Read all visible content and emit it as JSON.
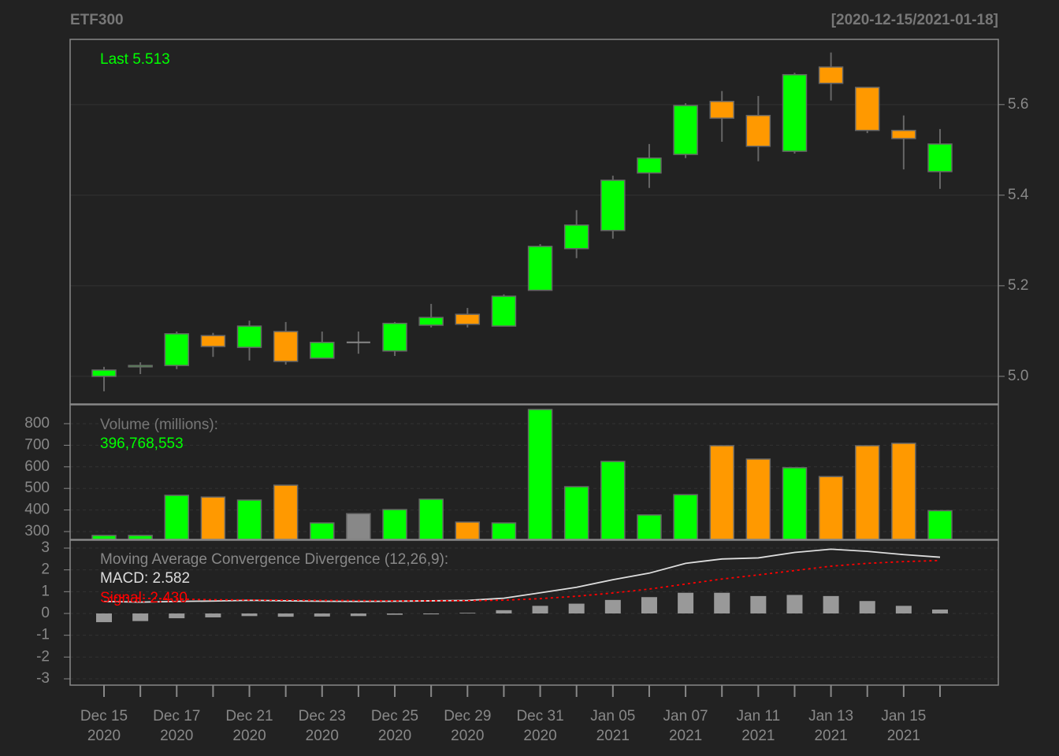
{
  "chart_data": [
    {
      "type": "candlestick",
      "title": "ETF300",
      "subtitle": "[2020-12-15/2021-01-18]",
      "annotation": "Last 5.513",
      "categories": [
        "Dec 15\n2020",
        null,
        "Dec 17\n2020",
        null,
        "Dec 21\n2020",
        null,
        "Dec 23\n2020",
        null,
        "Dec 25\n2020",
        null,
        "Dec 29\n2020",
        null,
        "Dec 31\n2020",
        null,
        "Jan 05\n2021",
        null,
        "Jan 07\n2021",
        null,
        "Jan 11\n2021",
        null,
        "Jan 13\n2021",
        null,
        "Jan 15\n2021",
        null
      ],
      "open": [
        5.0,
        5.021,
        5.024,
        5.09,
        5.064,
        5.099,
        5.04,
        5.075,
        5.056,
        5.113,
        5.137,
        5.111,
        5.19,
        5.282,
        5.322,
        5.449,
        5.49,
        5.607,
        5.576,
        5.497,
        5.683,
        5.638,
        5.543,
        5.452
      ],
      "high": [
        5.021,
        5.031,
        5.099,
        5.096,
        5.123,
        5.12,
        5.099,
        5.099,
        5.12,
        5.16,
        5.151,
        5.181,
        5.292,
        5.367,
        5.443,
        5.513,
        5.603,
        5.63,
        5.619,
        5.67,
        5.715,
        5.638,
        5.576,
        5.546
      ],
      "low": [
        4.967,
        5.005,
        5.016,
        5.043,
        5.035,
        5.026,
        5.04,
        5.05,
        5.045,
        5.108,
        5.108,
        5.111,
        5.19,
        5.261,
        5.304,
        5.416,
        5.482,
        5.518,
        5.475,
        5.492,
        5.609,
        5.537,
        5.457,
        5.414
      ],
      "close": [
        5.014,
        5.024,
        5.094,
        5.066,
        5.111,
        5.033,
        5.075,
        5.075,
        5.117,
        5.13,
        5.115,
        5.177,
        5.287,
        5.334,
        5.433,
        5.482,
        5.598,
        5.57,
        5.508,
        5.666,
        5.647,
        5.543,
        5.525,
        5.513
      ],
      "up_color": "#00ff00",
      "down_color": "#ff9900",
      "flat_color": "#888888",
      "ylim": [
        4.939,
        5.744
      ],
      "yticks": [
        {
          "value": 5,
          "label": "5.0"
        },
        5.2,
        5.4,
        5.6
      ],
      "grid": true
    },
    {
      "type": "volume",
      "annotation": "Volume (millions):",
      "values": [
        282,
        282,
        468,
        460,
        446,
        515,
        340,
        383,
        402,
        450,
        344,
        340,
        866,
        508,
        625,
        377,
        471,
        698,
        636,
        596,
        555,
        698,
        709,
        396.768553
      ],
      "value_labels": [
        null,
        null,
        null,
        null,
        null,
        null,
        null,
        null,
        null,
        null,
        null,
        null,
        null,
        null,
        null,
        null,
        null,
        null,
        null,
        null,
        null,
        null,
        null,
        "396,768,553"
      ],
      "ylim": [
        263.5,
        887.6
      ],
      "yticks": [
        300,
        400,
        500,
        600,
        700,
        800
      ],
      "grid": true
    },
    {
      "type": "macd",
      "annotation": "Moving Average Convergence Divergence (12,26,9):",
      "series": [
        {
          "name": "MACD: 2.582",
          "color": "#dddddd",
          "values": [
            0.55,
            0.52,
            0.55,
            0.57,
            0.6,
            0.58,
            0.56,
            0.55,
            0.56,
            0.58,
            0.6,
            0.7,
            0.95,
            1.2,
            1.55,
            1.85,
            2.3,
            2.5,
            2.55,
            2.8,
            2.95,
            2.85,
            2.7,
            2.582
          ]
        },
        {
          "name": "Signal: 2.430",
          "color": "#ff0000",
          "values": [
            0.75,
            0.7,
            0.66,
            0.63,
            0.62,
            0.61,
            0.6,
            0.59,
            0.58,
            0.58,
            0.58,
            0.61,
            0.68,
            0.79,
            0.94,
            1.12,
            1.35,
            1.58,
            1.77,
            1.97,
            2.17,
            2.3,
            2.38,
            2.43
          ]
        },
        {
          "color": "#999999",
          "values": [
            -0.4,
            -0.35,
            -0.22,
            -0.18,
            -0.12,
            -0.15,
            -0.14,
            -0.12,
            -0.06,
            -0.04,
            0.03,
            0.15,
            0.35,
            0.45,
            0.62,
            0.75,
            0.95,
            0.95,
            0.8,
            0.85,
            0.8,
            0.57,
            0.35,
            0.18
          ]
        }
      ],
      "ylim": [
        -3.289,
        3.361
      ],
      "yticks": [
        -3,
        -2,
        -1,
        0,
        1,
        2,
        3
      ],
      "grid": true
    }
  ]
}
